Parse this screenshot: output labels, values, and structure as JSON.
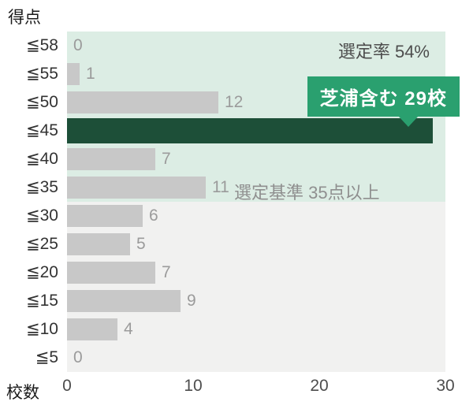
{
  "header": {
    "y_axis_title": "得点",
    "x_axis_title": "校数"
  },
  "annotations": {
    "selection_rate": "選定率 54%",
    "criteria": "選定基準 35点以上",
    "callout": "芝浦含む 29校"
  },
  "colors": {
    "bar": "#c8c8c8",
    "highlight_bar": "#1d4f38",
    "callout_bg": "#2aa06f",
    "zone_green": "#dcede4",
    "zone_gray": "#f1f1f0",
    "value_label": "#9b9b9b",
    "axis_text": "#333333"
  },
  "chart_data": {
    "type": "bar",
    "orientation": "horizontal",
    "title": "",
    "xlabel": "校数",
    "ylabel": "得点",
    "categories": [
      "≦58",
      "≦55",
      "≦50",
      "≦45",
      "≦40",
      "≦35",
      "≦30",
      "≦25",
      "≦20",
      "≦15",
      "≦10",
      "≦5"
    ],
    "values": [
      0,
      1,
      12,
      29,
      7,
      11,
      6,
      5,
      7,
      9,
      4,
      0
    ],
    "highlight_category": "≦45",
    "highlight_value": 29,
    "highlight_note": "芝浦含む 29校",
    "xlim": [
      0,
      30
    ],
    "x_ticks": [
      0,
      10,
      20,
      30
    ],
    "grid": "off",
    "legend_position": "none",
    "zones": [
      {
        "name": "selection-zone",
        "categories": [
          "≦58",
          "≦55",
          "≦50",
          "≦45",
          "≦40",
          "≦35"
        ],
        "color": "#dcede4",
        "note": "選定基準 35点以上"
      },
      {
        "name": "below-criteria-zone",
        "categories": [
          "≦30",
          "≦25",
          "≦20",
          "≦15",
          "≦10",
          "≦5"
        ],
        "color": "#f1f1f0",
        "note": ""
      }
    ]
  }
}
